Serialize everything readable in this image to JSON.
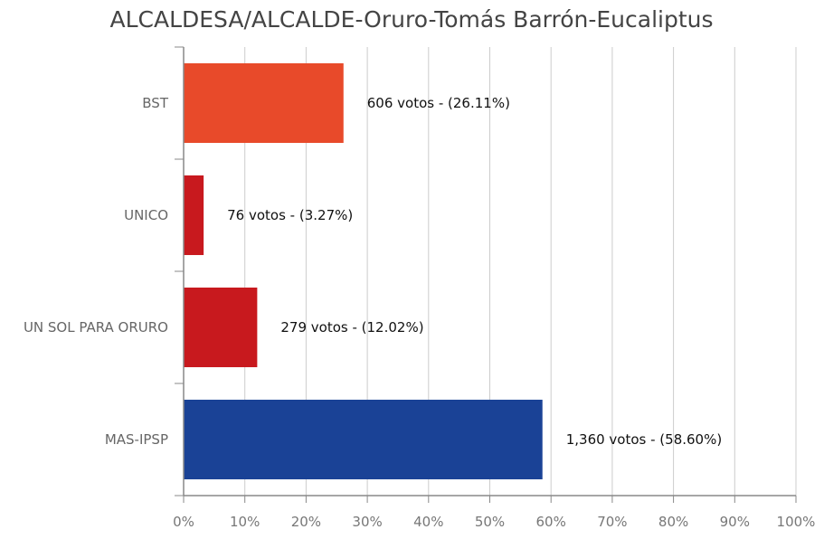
{
  "chart_data": {
    "type": "bar",
    "orientation": "horizontal",
    "title": "ALCALDESA/ALCALDE-Oruro-Tomás Barrón-Eucaliptus",
    "categories": [
      "BST",
      "UNICO",
      "UN SOL PARA ORURO",
      "MAS-IPSP"
    ],
    "values": [
      26.11,
      3.27,
      12.02,
      58.6
    ],
    "votes": [
      "606",
      "76",
      "279",
      "1,360"
    ],
    "data_labels": [
      "606 votos - (26.11%)",
      "76 votos - (3.27%)",
      "279 votos - (12.02%)",
      "1,360 votos - (58.60%)"
    ],
    "colors": [
      "#e84a2a",
      "#c8191e",
      "#c8191e",
      "#1a4296"
    ],
    "xlim": [
      0,
      100
    ],
    "x_ticks": [
      "0%",
      "10%",
      "20%",
      "30%",
      "40%",
      "50%",
      "60%",
      "70%",
      "80%",
      "90%",
      "100%"
    ],
    "xlabel": "",
    "ylabel": "",
    "grid": true,
    "legend": "none"
  }
}
